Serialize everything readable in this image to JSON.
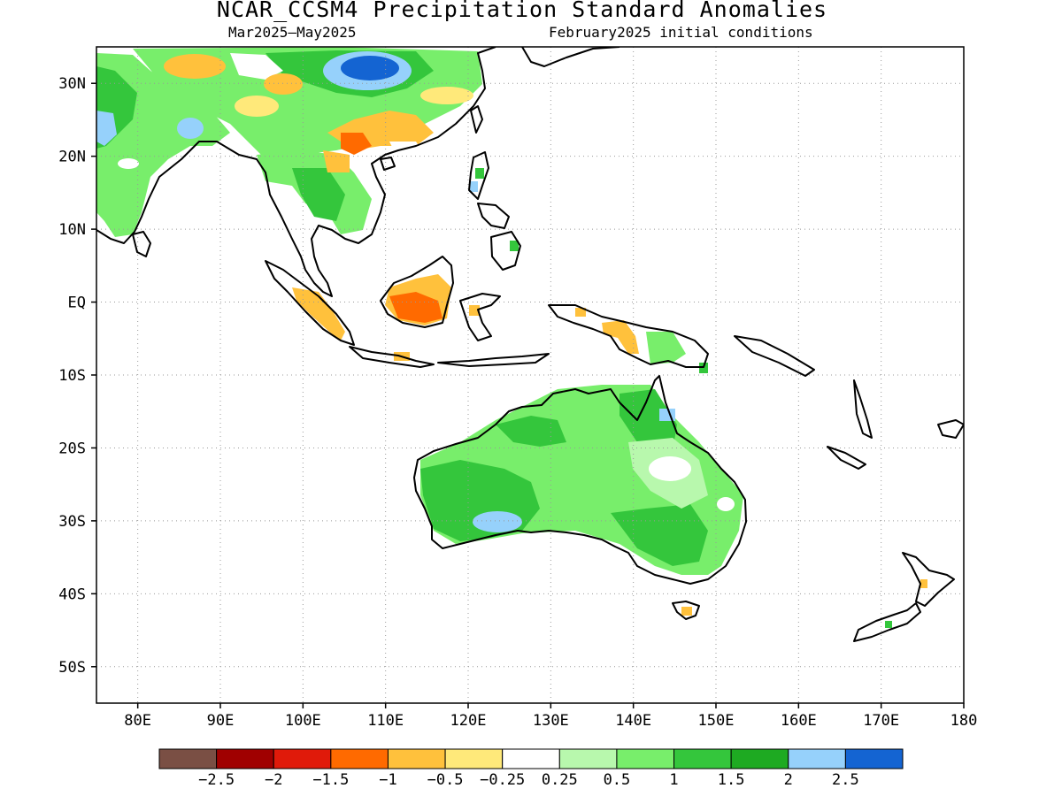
{
  "title": "NCAR_CCSM4 Precipitation Standard Anomalies",
  "subtitle_left": "Mar2025–May2025",
  "subtitle_right": "February2025 initial conditions",
  "map": {
    "lon_range": [
      75,
      180
    ],
    "lat_range": [
      -55,
      35
    ],
    "x_ticks": [
      {
        "lon": 80,
        "label": "80E"
      },
      {
        "lon": 90,
        "label": "90E"
      },
      {
        "lon": 100,
        "label": "100E"
      },
      {
        "lon": 110,
        "label": "110E"
      },
      {
        "lon": 120,
        "label": "120E"
      },
      {
        "lon": 130,
        "label": "130E"
      },
      {
        "lon": 140,
        "label": "140E"
      },
      {
        "lon": 150,
        "label": "150E"
      },
      {
        "lon": 160,
        "label": "160E"
      },
      {
        "lon": 170,
        "label": "170E"
      },
      {
        "lon": 180,
        "label": "180"
      }
    ],
    "y_ticks": [
      {
        "lat": 30,
        "label": "30N"
      },
      {
        "lat": 20,
        "label": "20N"
      },
      {
        "lat": 10,
        "label": "10N"
      },
      {
        "lat": 0,
        "label": "EQ"
      },
      {
        "lat": -10,
        "label": "10S"
      },
      {
        "lat": -20,
        "label": "20S"
      },
      {
        "lat": -30,
        "label": "30S"
      },
      {
        "lat": -40,
        "label": "40S"
      },
      {
        "lat": -50,
        "label": "50S"
      }
    ],
    "grid": "dotted"
  },
  "colorbar": {
    "colors": [
      "#7a4f44",
      "#a00000",
      "#e01a0a",
      "#ff6a00",
      "#ffc13c",
      "#ffe97a",
      "#ffffff",
      "#b8f8ad",
      "#78ee6b",
      "#34c63c",
      "#1eaa22",
      "#96d1fb",
      "#1464d2"
    ],
    "labels": [
      "−2.5",
      "−2",
      "−1.5",
      "−1",
      "−0.5",
      "−0.25",
      "0.25",
      "0.5",
      "1",
      "1.5",
      "2",
      "2.5"
    ]
  },
  "anomaly_regions": [
    {
      "region": "Australia",
      "category": 0.5,
      "color": "#78ee6b"
    },
    {
      "region": "SW Australia",
      "category": 1.5,
      "color": "#34c63c"
    },
    {
      "region": "SW Australia interior",
      "category": 2,
      "color": "#96d1fb"
    },
    {
      "region": "Queensland interior",
      "category": 0.25,
      "color": "#ffffff"
    },
    {
      "region": "India",
      "category": 0.5,
      "color": "#78ee6b"
    },
    {
      "region": "Indochina",
      "category": 1.5,
      "color": "#34c63c"
    },
    {
      "region": "South China",
      "category": -0.5,
      "color": "#ffc13c"
    },
    {
      "region": "Tibetan Plateau",
      "category": 2.5,
      "color": "#1464d2"
    },
    {
      "region": "Borneo",
      "category": -1,
      "color": "#ff6a00"
    },
    {
      "region": "Sumatra",
      "category": -0.5,
      "color": "#ffc13c"
    },
    {
      "region": "New Guinea",
      "category": -0.5,
      "color": "#ffc13c"
    },
    {
      "region": "Tasmania",
      "category": -0.5,
      "color": "#ffc13c"
    }
  ]
}
